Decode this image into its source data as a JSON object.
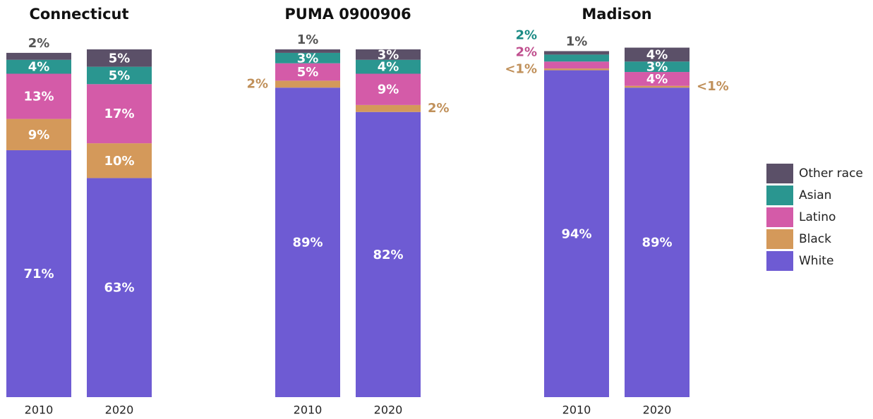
{
  "chart_data": [
    {
      "type": "stacked-bar",
      "title": "Connecticut",
      "categories": [
        "2010",
        "2020"
      ],
      "ylim": [
        0,
        100
      ],
      "legend": "right",
      "series": [
        {
          "name": "White",
          "color": "#6e5bd3",
          "values": [
            71,
            63
          ],
          "value_labels": [
            "71%",
            "63%"
          ]
        },
        {
          "name": "Black",
          "color": "#d4995a",
          "values": [
            9,
            10
          ],
          "value_labels": [
            "9%",
            "10%"
          ]
        },
        {
          "name": "Latino",
          "color": "#d45ba8",
          "values": [
            13,
            17
          ],
          "value_labels": [
            "13%",
            "17%"
          ]
        },
        {
          "name": "Asian",
          "color": "#2a9690",
          "values": [
            4,
            5
          ],
          "value_labels": [
            "4%",
            "5%"
          ]
        },
        {
          "name": "Other race",
          "color": "#5b5068",
          "values": [
            2,
            5
          ],
          "value_labels": [
            "2%",
            "5%"
          ]
        }
      ]
    },
    {
      "type": "stacked-bar",
      "title": "PUMA 0900906",
      "categories": [
        "2010",
        "2020"
      ],
      "ylim": [
        0,
        100
      ],
      "series": [
        {
          "name": "White",
          "color": "#6e5bd3",
          "values": [
            89,
            82
          ],
          "value_labels": [
            "89%",
            "82%"
          ]
        },
        {
          "name": "Black",
          "color": "#d4995a",
          "values": [
            2,
            2
          ],
          "value_labels": [
            "2%",
            "2%"
          ]
        },
        {
          "name": "Latino",
          "color": "#d45ba8",
          "values": [
            5,
            9
          ],
          "value_labels": [
            "5%",
            "9%"
          ]
        },
        {
          "name": "Asian",
          "color": "#2a9690",
          "values": [
            3,
            4
          ],
          "value_labels": [
            "3%",
            "4%"
          ]
        },
        {
          "name": "Other race",
          "color": "#5b5068",
          "values": [
            1,
            3
          ],
          "value_labels": [
            "1%",
            "3%"
          ]
        }
      ]
    },
    {
      "type": "stacked-bar",
      "title": "Madison",
      "categories": [
        "2010",
        "2020"
      ],
      "ylim": [
        0,
        100
      ],
      "series": [
        {
          "name": "White",
          "color": "#6e5bd3",
          "values": [
            94,
            89
          ],
          "value_labels": [
            "94%",
            "89%"
          ]
        },
        {
          "name": "Black",
          "color": "#d4995a",
          "values": [
            0.5,
            0.5
          ],
          "value_labels": [
            "<1%",
            "<1%"
          ]
        },
        {
          "name": "Latino",
          "color": "#d45ba8",
          "values": [
            2,
            4
          ],
          "value_labels": [
            "2%",
            "4%"
          ]
        },
        {
          "name": "Asian",
          "color": "#2a9690",
          "values": [
            2,
            3
          ],
          "value_labels": [
            "2%",
            "3%"
          ]
        },
        {
          "name": "Other race",
          "color": "#5b5068",
          "values": [
            1,
            4
          ],
          "value_labels": [
            "1%",
            "4%"
          ]
        }
      ]
    }
  ]
}
